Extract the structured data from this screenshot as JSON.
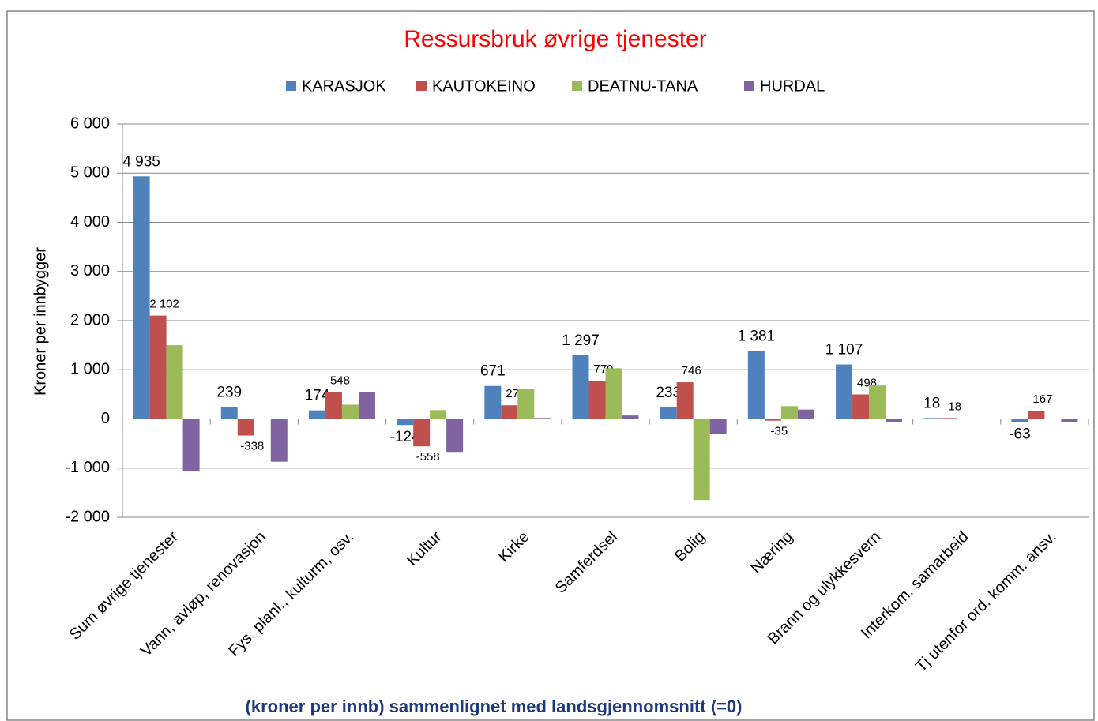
{
  "chart_data": {
    "type": "bar",
    "title": "Ressursbruk øvrige tjenester",
    "y_label": "Kroner per innbygger",
    "x_label": "(kroner per innb) sammenlignet med landsgjennomsnitt (=0)",
    "categories": [
      "Sum øvrige tjenester",
      "Vann, avløp, renovasjon",
      "Fys. planl., kulturm, osv.",
      "Kultur",
      "Kirke",
      "Samferdsel",
      "Bolig",
      "Næring",
      "Brann og ulykkesvern",
      "Interkom. samarbeid",
      "Tj utenfor ord. komm. ansv."
    ],
    "series": [
      {
        "name": "KARASJOK",
        "color": "#4f81bd",
        "values": [
          4935,
          239,
          174,
          -124,
          671,
          1297,
          233,
          1381,
          1107,
          18,
          -63
        ],
        "value_labels": [
          "4 935",
          "239",
          "174",
          "-124",
          "671",
          "1 297",
          "233",
          "1 381",
          "1 107",
          "18",
          "-63"
        ]
      },
      {
        "name": "KAUTOKEINO",
        "color": "#c0504d",
        "values": [
          2102,
          -338,
          548,
          -558,
          277,
          779,
          746,
          -35,
          498,
          18,
          167
        ],
        "value_labels": [
          "2 102",
          "-338",
          "548",
          "-558",
          "277",
          "779",
          "746",
          "-35",
          "498",
          "18",
          "167"
        ]
      },
      {
        "name": "DEATNU-TANA",
        "color": "#9bbb59",
        "values": [
          1500,
          0,
          290,
          180,
          610,
          1030,
          -1650,
          260,
          680,
          0,
          0
        ]
      },
      {
        "name": "HURDAL",
        "color": "#8064a2",
        "values": [
          -1070,
          -870,
          550,
          -670,
          20,
          70,
          -300,
          190,
          -60,
          0,
          -60
        ]
      }
    ],
    "ylim": [
      -2000,
      6000
    ],
    "yticks": [
      {
        "value": -2000,
        "label": "-2 000"
      },
      {
        "value": -1000,
        "label": "-1 000"
      },
      0,
      {
        "value": 1000,
        "label": "1 000"
      },
      {
        "value": 2000,
        "label": "2 000"
      },
      {
        "value": 3000,
        "label": "3 000"
      },
      {
        "value": 4000,
        "label": "4 000"
      },
      {
        "value": 5000,
        "label": "5 000"
      },
      {
        "value": 6000,
        "label": "6 000"
      }
    ],
    "grid": true,
    "legend": "top"
  }
}
